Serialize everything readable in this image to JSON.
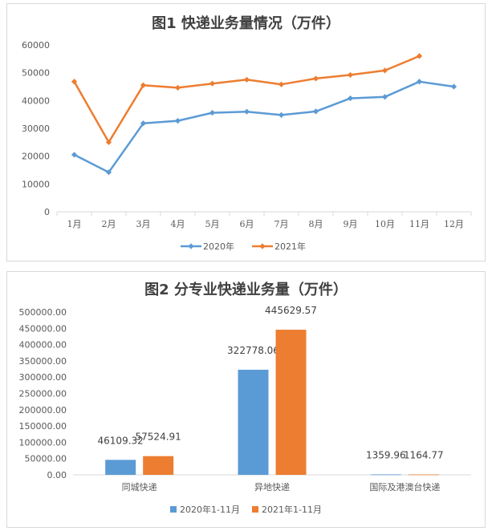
{
  "chart_data": [
    {
      "type": "line",
      "title": "图1  快递业务量情况（万件）",
      "categories": [
        "1月",
        "2月",
        "3月",
        "4月",
        "5月",
        "6月",
        "7月",
        "8月",
        "9月",
        "10月",
        "11月",
        "12月"
      ],
      "series": [
        {
          "name": "2020年",
          "color": "#5b9bd5",
          "values": [
            20500,
            14200,
            31800,
            32700,
            35600,
            36000,
            34800,
            36100,
            40800,
            41300,
            46800,
            45000
          ]
        },
        {
          "name": "2021年",
          "color": "#ed7d31",
          "values": [
            46800,
            25000,
            45500,
            44600,
            46100,
            47500,
            45800,
            47900,
            49200,
            50800,
            56000,
            null
          ]
        }
      ],
      "ylim": [
        0,
        60000
      ],
      "yticks": [
        "0",
        "10000",
        "20000",
        "30000",
        "40000",
        "50000",
        "60000"
      ],
      "grid": false,
      "legend": "bottom"
    },
    {
      "type": "bar",
      "title": "图2 分专业快递业务量（万件）",
      "categories": [
        "同城快递",
        "异地快递",
        "国际及港澳台快递"
      ],
      "series": [
        {
          "name": "2020年1-11月",
          "color": "#5b9bd5",
          "values": [
            46109.32,
            322778.06,
            1359.96
          ],
          "labels": [
            "46109.32",
            "322778.06",
            "1359.96"
          ]
        },
        {
          "name": "2021年1-11月",
          "color": "#ed7d31",
          "values": [
            57524.91,
            445629.57,
            1164.77
          ],
          "labels": [
            "57524.91",
            "445629.57",
            "1164.77"
          ]
        }
      ],
      "ylim": [
        0,
        500000
      ],
      "yticks": [
        "0.00",
        "50000.00",
        "100000.00",
        "150000.00",
        "200000.00",
        "250000.00",
        "300000.00",
        "350000.00",
        "400000.00",
        "450000.00",
        "500000.00"
      ],
      "grid": false,
      "legend": "bottom"
    }
  ]
}
